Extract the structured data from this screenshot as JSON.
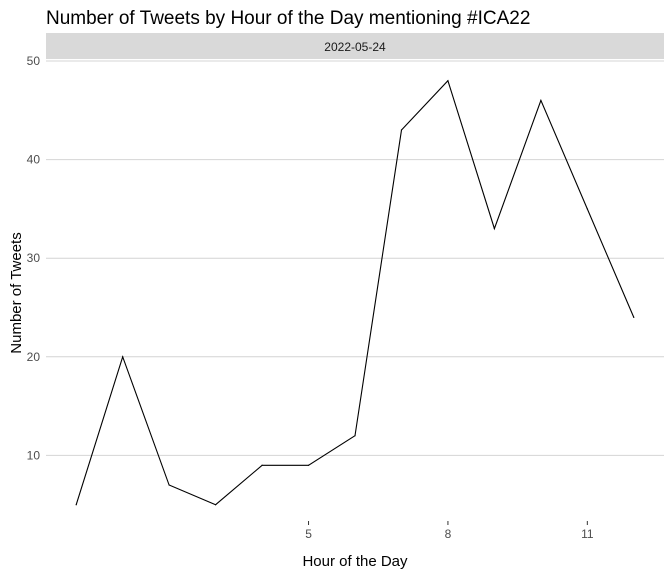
{
  "chart_data": {
    "type": "line",
    "title": "Number of Tweets by Hour of the Day mentioning #ICA22",
    "facet_label": "2022-05-24",
    "xlabel": "Hour of the Day",
    "ylabel": "Number of Tweets",
    "x": [
      0,
      1,
      2,
      3,
      4,
      5,
      6,
      7,
      8,
      9,
      10,
      11,
      12
    ],
    "y": [
      5,
      20,
      7,
      5,
      9,
      9,
      12,
      43,
      48,
      33,
      46,
      35,
      24
    ],
    "xlim": [
      -0.65,
      12.65
    ],
    "ylim": [
      3.35,
      50.2
    ],
    "x_ticks": [
      5,
      8,
      11
    ],
    "y_ticks": [
      10,
      20,
      30,
      40,
      50
    ],
    "line_color": "#000000",
    "gridline_color": "#d4d4d4",
    "strip_color": "#d9d9d9",
    "grid": true
  }
}
